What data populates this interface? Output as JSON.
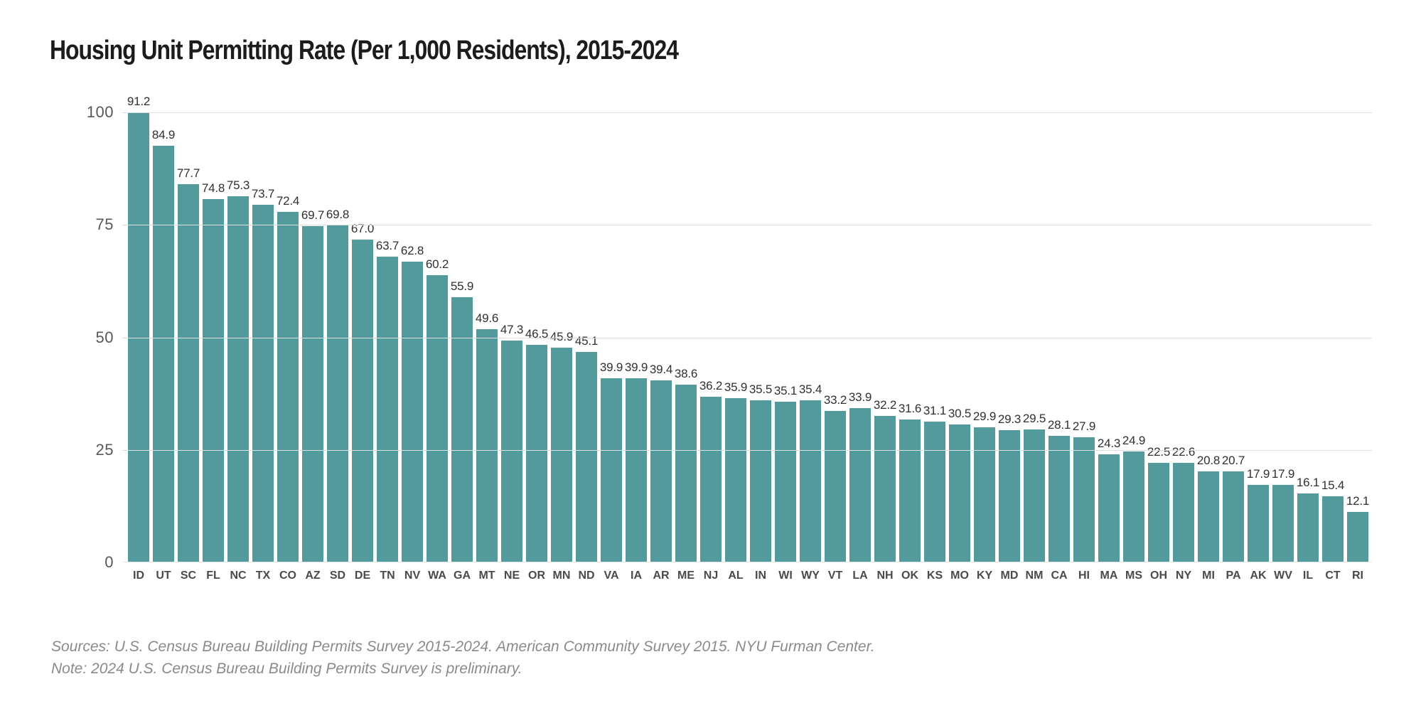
{
  "page": {
    "background": "#ffffff"
  },
  "chart": {
    "footer": {
      "sources_line": "Sources: U.S. Census Bureau Building Permits Survey 2015-2024. American Community Survey 2015. NYU Furman Center.",
      "note_line": "Note: 2024 U.S. Census Bureau Building Permits Survey is preliminary."
    }
  },
  "chart_data": {
    "type": "bar",
    "title": "Housing Unit Permitting Rate (Per 1,000 Residents), 2015-2024",
    "xlabel": "",
    "ylabel": "",
    "categories": [
      "ID",
      "UT",
      "SC",
      "FL",
      "NC",
      "TX",
      "CO",
      "AZ",
      "SD",
      "DE",
      "TN",
      "NV",
      "WA",
      "GA",
      "MT",
      "NE",
      "OR",
      "MN",
      "ND",
      "VA",
      "IA",
      "AR",
      "ME",
      "NJ",
      "AL",
      "IN",
      "WI",
      "WY",
      "VT",
      "LA",
      "NH",
      "OK",
      "KS",
      "MO",
      "KY",
      "MD",
      "NM",
      "CA",
      "HI",
      "MA",
      "MS",
      "OH",
      "NY",
      "MI",
      "PA",
      "AK",
      "WV",
      "IL",
      "CT",
      "RI"
    ],
    "values": [
      91.2,
      84.9,
      77.7,
      74.8,
      75.3,
      73.7,
      72.4,
      69.7,
      69.8,
      67.0,
      63.7,
      62.8,
      60.2,
      55.9,
      49.6,
      47.3,
      46.5,
      45.9,
      45.1,
      39.9,
      39.9,
      39.4,
      38.6,
      36.2,
      35.9,
      35.5,
      35.1,
      35.4,
      33.2,
      33.9,
      32.2,
      31.6,
      31.1,
      30.5,
      29.9,
      29.3,
      29.5,
      28.1,
      27.9,
      24.3,
      24.9,
      22.5,
      22.6,
      20.8,
      20.7,
      17.9,
      17.9,
      16.1,
      15.4,
      12.1
    ],
    "value_labels_shown": true,
    "value_label_format": "one_decimal",
    "ylim": [
      0,
      100
    ],
    "yticks": [
      0,
      25,
      50,
      75,
      100
    ],
    "grid": "horizontal",
    "legend": "none",
    "colors": {
      "bar": "#539a9c",
      "gridline": "#dedede",
      "title_text": "#1c1c1c",
      "value_label_text": "#303030",
      "category_label_text": "#4a4a4a",
      "tick_label_text": "#585858",
      "footer_text": "#8a8a8a"
    }
  }
}
